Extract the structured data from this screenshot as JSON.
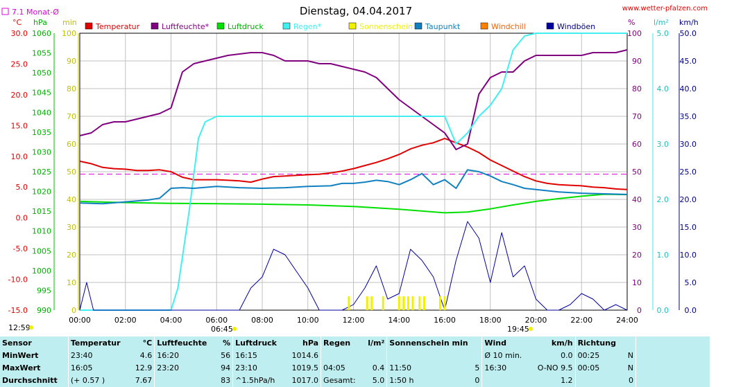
{
  "header": {
    "title": "Dienstag, 04.04.2017",
    "website": "www.wetter-pfalzen.com",
    "monthly_avg_label": "7.1 Monat-Ø"
  },
  "axis_units": {
    "temp": "°C",
    "pressure": "hPa",
    "minutes": "min",
    "percent": "%",
    "rain": "l/m²",
    "wind": "km/h"
  },
  "sun": {
    "sunrise": "06:45",
    "sunset": "19:45",
    "sunshine_hours": "12:59"
  },
  "colors": {
    "temperature": "#e00000",
    "humidity": "#800080",
    "pressure": "#00e000",
    "rain": "#40f0f0",
    "sunshine": "#f0f000",
    "dewpoint": "#1080c0",
    "windchill": "#ff8000",
    "gusts": "#0000a0",
    "monthly_avg": "#e000e0",
    "grid": "#c0c0c0"
  },
  "chart_data": {
    "type": "line",
    "title": "Dienstag, 04.04.2017",
    "x_ticks": [
      "00:00",
      "02:00",
      "04:00",
      "06:00",
      "08:00",
      "10:00",
      "12:00",
      "14:00",
      "16:00",
      "18:00",
      "20:00",
      "22:00",
      "24:00"
    ],
    "axes": {
      "temp_ticks": [
        "30.0",
        "25.0",
        "20.0",
        "15.0",
        "10.0",
        "5.0",
        "0.0",
        "-5.0",
        "-10.0",
        "-15.0"
      ],
      "pressure_ticks": [
        "1060",
        "1055",
        "1050",
        "1045",
        "1040",
        "1035",
        "1030",
        "1025",
        "1020",
        "1015",
        "1010",
        "1005",
        "1000",
        "995",
        "990"
      ],
      "minutes_ticks": [
        "100",
        "90",
        "80",
        "70",
        "60",
        "50",
        "40",
        "30",
        "20",
        "10",
        "0"
      ],
      "percent_ticks": [
        "100",
        "90",
        "80",
        "70",
        "60",
        "50",
        "40",
        "30",
        "20",
        "10",
        "0"
      ],
      "rain_ticks": [
        "5.0",
        "4.0",
        "3.0",
        "2.0",
        "1.0",
        "0.0"
      ],
      "wind_ticks": [
        "50.0",
        "45.0",
        "40.0",
        "35.0",
        "30.0",
        "25.0",
        "20.0",
        "15.0",
        "10.0",
        "5.0",
        "0.0"
      ],
      "temp_range": [
        -15,
        30
      ],
      "pressure_range": [
        990,
        1060
      ],
      "percent_range": [
        0,
        100
      ],
      "rain_range": [
        0,
        5
      ],
      "wind_range": [
        0,
        50
      ]
    },
    "legend": [
      "Temperatur",
      "Luftfeuchte*",
      "Luftdruck",
      "Regen*",
      "Sonnenschein",
      "Taupunkt",
      "Windchill",
      "Windböen"
    ],
    "monthly_avg_temp": 7.1,
    "series": [
      {
        "name": "Temperatur",
        "axis": "temp",
        "x": [
          0,
          0.5,
          1,
          1.5,
          2,
          2.5,
          3,
          3.5,
          4,
          4.5,
          5,
          5.5,
          6,
          6.5,
          7,
          7.5,
          8,
          8.5,
          9,
          9.5,
          10,
          10.5,
          11,
          11.5,
          12,
          12.5,
          13,
          13.5,
          14,
          14.5,
          15,
          15.5,
          16,
          16.5,
          17,
          17.5,
          18,
          18.5,
          19,
          19.5,
          20,
          20.5,
          21,
          21.5,
          22,
          22.5,
          23,
          23.5,
          24
        ],
        "values": [
          9.2,
          8.8,
          8.2,
          8.0,
          7.9,
          7.7,
          7.7,
          7.8,
          7.5,
          6.6,
          6.2,
          6.2,
          6.2,
          6.1,
          6.0,
          5.8,
          6.3,
          6.7,
          6.8,
          6.9,
          7.0,
          7.1,
          7.3,
          7.6,
          8.0,
          8.5,
          9.0,
          9.6,
          10.3,
          11.2,
          11.8,
          12.2,
          12.9,
          12.2,
          11.5,
          10.6,
          9.4,
          8.5,
          7.6,
          6.7,
          6.0,
          5.6,
          5.4,
          5.3,
          5.2,
          5.0,
          4.9,
          4.7,
          4.6
        ]
      },
      {
        "name": "Luftfeuchte*",
        "axis": "percent",
        "x": [
          0,
          0.5,
          1,
          1.5,
          2,
          2.5,
          3,
          3.5,
          4,
          4.5,
          5,
          5.5,
          6,
          6.5,
          7,
          7.5,
          8,
          8.5,
          9,
          9.5,
          10,
          10.5,
          11,
          11.5,
          12,
          12.5,
          13,
          13.5,
          14,
          14.5,
          15,
          15.5,
          16,
          16.5,
          17,
          17.5,
          18,
          18.5,
          19,
          19.5,
          20,
          20.5,
          21,
          21.5,
          22,
          22.5,
          23,
          23.5,
          24
        ],
        "values": [
          63,
          64,
          67,
          68,
          68,
          69,
          70,
          71,
          73,
          86,
          89,
          90,
          91,
          92,
          92.5,
          93,
          93,
          92,
          90,
          90,
          90,
          89,
          89,
          88,
          87,
          86,
          84,
          80,
          76,
          73,
          70,
          67,
          64,
          58,
          60,
          78,
          84,
          86,
          86,
          90,
          92,
          92,
          92,
          92,
          92,
          93,
          93,
          93,
          94
        ]
      },
      {
        "name": "Luftdruck",
        "axis": "pressure",
        "x": [
          0,
          2,
          4,
          6,
          8,
          10,
          12,
          14,
          16,
          17,
          18,
          19,
          20,
          21,
          22,
          23,
          24
        ],
        "values": [
          1017.5,
          1017.2,
          1017.0,
          1016.9,
          1016.8,
          1016.6,
          1016.2,
          1015.5,
          1014.6,
          1014.8,
          1015.6,
          1016.6,
          1017.5,
          1018.2,
          1018.8,
          1019.3,
          1019.2
        ]
      },
      {
        "name": "Regen*",
        "axis": "rain",
        "x": [
          0,
          3,
          4,
          4.3,
          4.8,
          5.2,
          5.5,
          6,
          7,
          10,
          12,
          14,
          16,
          16.5,
          17,
          17.5,
          18,
          18.5,
          19,
          19.5,
          20,
          24
        ],
        "values": [
          0,
          0,
          0,
          0.4,
          1.8,
          3.1,
          3.4,
          3.5,
          3.5,
          3.5,
          3.5,
          3.5,
          3.5,
          3.0,
          3.2,
          3.5,
          3.7,
          4.0,
          4.7,
          4.95,
          5.0,
          5.0
        ]
      },
      {
        "name": "Taupunkt",
        "axis": "temp",
        "x": [
          0,
          1,
          2,
          3,
          3.5,
          4,
          4.5,
          5,
          6,
          7,
          8,
          9,
          10,
          11,
          11.5,
          12,
          12.5,
          13,
          13.5,
          14,
          14.5,
          15,
          15.5,
          16,
          16.5,
          17,
          17.5,
          18,
          18.5,
          19,
          19.5,
          20,
          21,
          22,
          23,
          24
        ],
        "values": [
          2.4,
          2.3,
          2.6,
          2.9,
          3.2,
          4.8,
          4.9,
          4.8,
          5.1,
          4.9,
          4.8,
          4.9,
          5.1,
          5.2,
          5.6,
          5.6,
          5.8,
          6.1,
          5.9,
          5.4,
          6.2,
          7.2,
          5.4,
          6.2,
          4.8,
          7.8,
          7.5,
          6.8,
          5.9,
          5.4,
          4.8,
          4.6,
          4.2,
          4.0,
          3.9,
          3.8
        ]
      },
      {
        "name": "Windböen",
        "axis": "wind",
        "x": [
          0,
          0.3,
          0.6,
          1,
          4,
          5,
          6,
          7,
          7.5,
          8,
          8.5,
          9,
          9.5,
          10,
          10.5,
          11,
          11.5,
          12,
          12.5,
          13,
          13.5,
          14,
          14.5,
          15,
          15.5,
          16,
          16.5,
          17,
          17.5,
          18,
          18.5,
          19,
          19.5,
          20,
          20.5,
          21,
          21.5,
          22,
          22.5,
          23,
          23.5,
          24
        ],
        "values": [
          0,
          5,
          0,
          0,
          0,
          0,
          0,
          0,
          4,
          6,
          11,
          10,
          7,
          4,
          0,
          0,
          0,
          1,
          4,
          8,
          2,
          3,
          11,
          9,
          6,
          0,
          9,
          16,
          13,
          5,
          14,
          6,
          8,
          2,
          0,
          0,
          1,
          3,
          2,
          0,
          1,
          0
        ]
      },
      {
        "name": "Sonnenschein",
        "axis": "minutes",
        "x": [
          11.8,
          12.6,
          12.8,
          13.3,
          14.0,
          14.2,
          14.4,
          14.6,
          14.9,
          15.1,
          15.8,
          16.0
        ],
        "values": [
          5,
          5,
          5,
          5,
          5,
          5,
          5,
          5,
          5,
          5,
          5,
          5
        ]
      }
    ]
  },
  "stats": {
    "headers": [
      "Sensor",
      "Temperatur",
      "°C",
      "Luftfeuchte",
      "%",
      "Luftdruck",
      "hPa",
      "Regen",
      "l/m²",
      "Sonnenschein min",
      "Wind",
      "km/h",
      "Richtung"
    ],
    "rows": [
      {
        "label": "MinWert",
        "temp_time": "23:40",
        "temp_val": "4.6",
        "hum_time": "16:20",
        "hum_val": "56",
        "press_time": "16:15",
        "press_val": "1014.6",
        "rain_time": "",
        "rain_val": "",
        "sun_time": "",
        "sun_val": "",
        "wind_time": "Ø 10 min.",
        "wind_val": "0.0",
        "dir_time": "00:25",
        "dir_val": "N"
      },
      {
        "label": "MaxWert",
        "temp_time": "16:05",
        "temp_val": "12.9",
        "hum_time": "23:20",
        "hum_val": "94",
        "press_time": "23:10",
        "press_val": "1019.5",
        "rain_time": "04:05",
        "rain_val": "0.4",
        "sun_time": "11:50",
        "sun_val": "5",
        "wind_time": "16:30",
        "wind_val": "O-NO 9.5",
        "dir_time": "00:05",
        "dir_val": "N"
      },
      {
        "label": "Durchschnitt",
        "temp_time": "(+ 0.57 )",
        "temp_val": "7.67",
        "hum_time": "",
        "hum_val": "83",
        "press_time": "^1.5hPa/h",
        "press_val": "1017.0",
        "rain_time": "Gesamt:",
        "rain_val": "5.0",
        "sun_time": "1:50 h",
        "sun_val": "0",
        "wind_time": "",
        "wind_val": "1.2",
        "dir_time": "",
        "dir_val": "0"
      }
    ]
  }
}
